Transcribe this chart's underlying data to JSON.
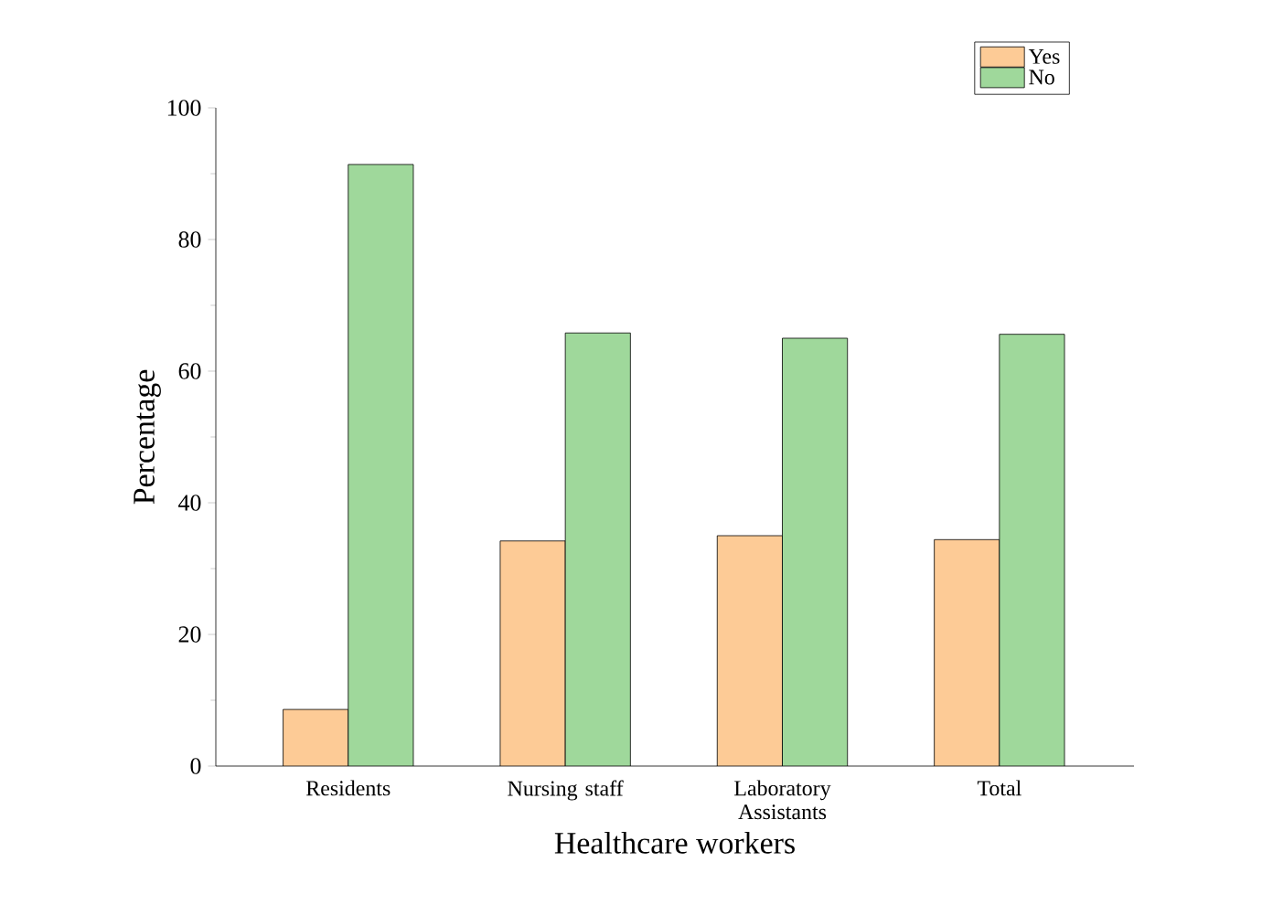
{
  "chart_data": {
    "type": "bar",
    "xlabel": "Healthcare workers",
    "ylabel": "Percentage",
    "categories": [
      "Residents",
      "Nursing staff",
      "Laboratory Assistants",
      "Total"
    ],
    "series": [
      {
        "name": "Yes",
        "color": "#fdcb96",
        "values": [
          8.6,
          34.2,
          35.0,
          34.4
        ]
      },
      {
        "name": "No",
        "color": "#9fd89b",
        "values": [
          91.4,
          65.8,
          65.0,
          65.6
        ]
      }
    ],
    "ylim": [
      0,
      100
    ],
    "yticks": [
      0,
      20,
      40,
      60,
      80,
      100
    ],
    "legend": "top right",
    "grid": false
  }
}
